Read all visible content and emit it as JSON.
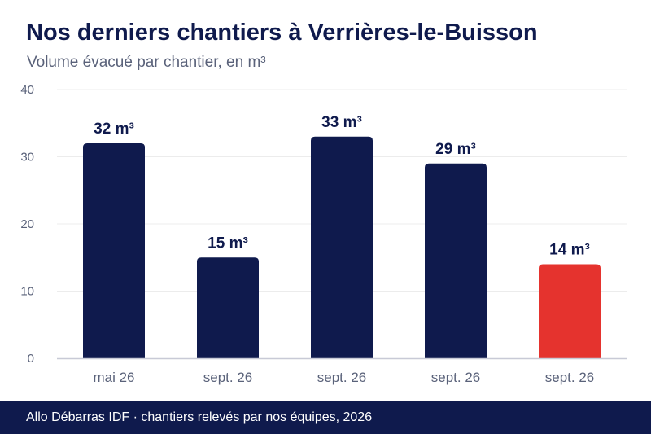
{
  "header": {
    "title": "Nos derniers chantiers à Verrières-le-Buisson",
    "subtitle": "Volume évacué par chantier, en m³"
  },
  "chart_data": {
    "type": "bar",
    "categories": [
      "mai 26",
      "sept. 26",
      "sept. 26",
      "sept. 26",
      "sept. 26"
    ],
    "values": [
      32,
      15,
      33,
      29,
      14
    ],
    "data_labels": [
      "32 m³",
      "15 m³",
      "33 m³",
      "29 m³",
      "14 m³"
    ],
    "unit": "m³",
    "ylim": [
      0,
      40
    ],
    "yticks": [
      0,
      10,
      20,
      30,
      40
    ],
    "grid": true,
    "colors": {
      "default": "#0f1a4d",
      "highlight": "#e5332e",
      "grid": "#ececec",
      "axis": "#c8cad6"
    },
    "highlight_index": 4
  },
  "footer": {
    "text": "Allo Débarras IDF · chantiers relevés par nos équipes, 2026"
  }
}
